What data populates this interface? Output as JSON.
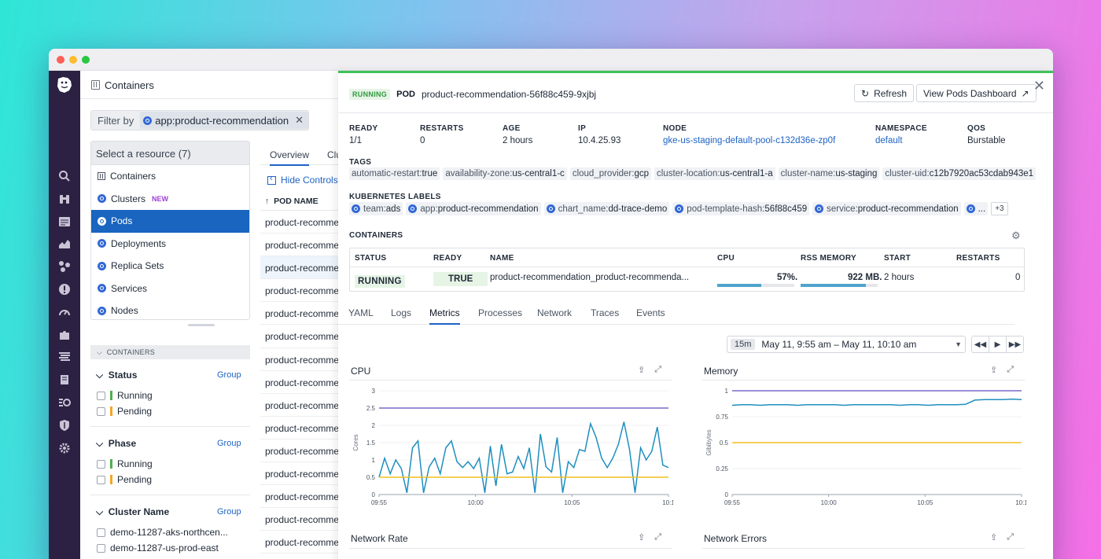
{
  "left": {
    "header_title": "Containers",
    "filter_label": "Filter by",
    "filter_chip": "app:product-recommendation",
    "filter_chip_close": "✕",
    "resource_head": "Select a resource (7)",
    "resources": [
      {
        "label": "Containers",
        "badge": ""
      },
      {
        "label": "Clusters",
        "badge": "NEW"
      },
      {
        "label": "Pods",
        "badge": ""
      },
      {
        "label": "Deployments",
        "badge": ""
      },
      {
        "label": "Replica Sets",
        "badge": ""
      },
      {
        "label": "Services",
        "badge": ""
      },
      {
        "label": "Nodes",
        "badge": ""
      }
    ],
    "facet_section": "CONTAINERS",
    "facets": [
      {
        "title": "Status",
        "group": "Group",
        "options": [
          "Running",
          "Pending"
        ]
      },
      {
        "title": "Phase",
        "group": "Group",
        "options": [
          "Running",
          "Pending"
        ]
      },
      {
        "title": "Cluster Name",
        "group": "Group",
        "options": [
          "demo-11287-aks-northcen...",
          "demo-11287-us-prod-east"
        ]
      }
    ],
    "tabs": [
      "Overview",
      "Clu"
    ],
    "hide_controls": "Hide Controls",
    "pod_list_header": "POD NAME",
    "pod_rows": [
      "product-recommer",
      "product-recommer",
      "product-recommer",
      "product-recommer",
      "product-recommer",
      "product-recommer",
      "product-recommer",
      "product-recommer",
      "product-recommer",
      "product-recommer",
      "product-recommer",
      "product-recommer",
      "product-recommer",
      "product-recommer",
      "product-recommer"
    ]
  },
  "panel": {
    "status": "RUNNING",
    "kind": "POD",
    "pod_name": "product-recommendation-56f88c459-9xjbj",
    "refresh_label": "Refresh",
    "dashboard_label": "View Pods Dashboard",
    "close": "✕",
    "meta": [
      {
        "label": "READY",
        "value": "1/1"
      },
      {
        "label": "RESTARTS",
        "value": "0"
      },
      {
        "label": "AGE",
        "value": "2 hours"
      },
      {
        "label": "IP",
        "value": "10.4.25.93"
      },
      {
        "label": "NODE",
        "value": "gke-us-staging-default-pool-c132d36e-zp0f"
      },
      {
        "label": "NAMESPACE",
        "value": "default"
      },
      {
        "label": "QOS",
        "value": "Burstable"
      }
    ],
    "tags_label": "TAGS",
    "tags": [
      {
        "k": "automatic-restart",
        "v": "true"
      },
      {
        "k": "availability-zone",
        "v": "us-central1-c"
      },
      {
        "k": "cloud_provider",
        "v": "gcp"
      },
      {
        "k": "cluster-location",
        "v": "us-central1-a"
      },
      {
        "k": "cluster-name",
        "v": "us-staging"
      },
      {
        "k": "cluster-uid",
        "v": "c12b7920ac53cdab943e1"
      }
    ],
    "labels_label": "KUBERNETES LABELS",
    "labels": [
      {
        "k": "team",
        "v": "ads"
      },
      {
        "k": "app",
        "v": "product-recommendation"
      },
      {
        "k": "chart_name",
        "v": "dd-trace-demo"
      },
      {
        "k": "pod-template-hash",
        "v": "56f88c459"
      },
      {
        "k": "service",
        "v": "product-recommendation"
      },
      {
        "k": "",
        "v": "..."
      }
    ],
    "labels_more": "+3",
    "containers_label": "CONTAINERS",
    "container_table": {
      "headers": [
        "STATUS",
        "READY",
        "NAME",
        "CPU",
        "RSS MEMORY",
        "START",
        "RESTARTS"
      ],
      "row": {
        "status": "RUNNING",
        "ready": "TRUE",
        "name": "product-recommendation_product-recommenda...",
        "cpu": "57%.",
        "cpu_level": 0.57,
        "memory": "922 MB.",
        "memory_level": 0.85,
        "start": "2 hours",
        "restarts": "0"
      }
    },
    "subtabs": [
      "YAML",
      "Logs",
      "Metrics",
      "Processes",
      "Network",
      "Traces",
      "Events"
    ],
    "active_subtab": "Metrics",
    "time_abbrev": "15m",
    "time_range": "May 11, 9:55 am – May 11, 10:10 am",
    "bottom_titles": [
      "Network Rate",
      "Network Errors"
    ]
  },
  "chart_data": [
    {
      "type": "line",
      "title": "CPU",
      "ylabel": "Cores",
      "ylim": [
        0,
        3
      ],
      "yticks": [
        "3",
        "2.5",
        "2",
        "1.5",
        "1",
        "0.5",
        "0"
      ],
      "xticks": [
        "09:55",
        "10:00",
        "10:05",
        "10:1"
      ],
      "series": [
        {
          "color": "#1f8fbf",
          "values": [
            0.5,
            1.05,
            0.6,
            1.0,
            0.75,
            0.05,
            1.35,
            1.55,
            0.05,
            0.8,
            1.05,
            0.6,
            1.35,
            1.55,
            0.95,
            0.78,
            0.95,
            0.75,
            1.05,
            0.05,
            1.4,
            0.25,
            1.45,
            0.6,
            0.65,
            1.1,
            0.75,
            1.35,
            0.05,
            1.75,
            0.8,
            0.65,
            1.65,
            0.05,
            0.95,
            0.78,
            1.3,
            1.25,
            2.05,
            1.65,
            1.05,
            0.78,
            1.05,
            1.45,
            2.1,
            1.3,
            0.05,
            1.35,
            1.0,
            1.25,
            1.95,
            0.85,
            0.78
          ]
        },
        {
          "color": "#7b68c8",
          "values": [
            2.5,
            2.5
          ]
        },
        {
          "color": "#f0c020",
          "values": [
            0.5,
            0.5
          ]
        }
      ]
    },
    {
      "type": "line",
      "title": "Memory",
      "ylabel": "Gibibytes",
      "ylim": [
        0,
        1
      ],
      "yticks": [
        "1",
        "0.75",
        "0.5",
        "0.25",
        "0"
      ],
      "xticks": [
        "09:55",
        "10:00",
        "10:05",
        "10:1"
      ],
      "series": [
        {
          "color": "#1f8fbf",
          "values": [
            0.86,
            0.865,
            0.865,
            0.86,
            0.865,
            0.865,
            0.865,
            0.86,
            0.865,
            0.865,
            0.865,
            0.865,
            0.86,
            0.865,
            0.865,
            0.865,
            0.865,
            0.865,
            0.86,
            0.865,
            0.865,
            0.86,
            0.865,
            0.865,
            0.865,
            0.87,
            0.91,
            0.915,
            0.915,
            0.915,
            0.92,
            0.915
          ]
        },
        {
          "color": "#7b68c8",
          "values": [
            1.0,
            1.0
          ]
        },
        {
          "color": "#f0c020",
          "values": [
            0.5,
            0.5
          ]
        }
      ]
    }
  ]
}
